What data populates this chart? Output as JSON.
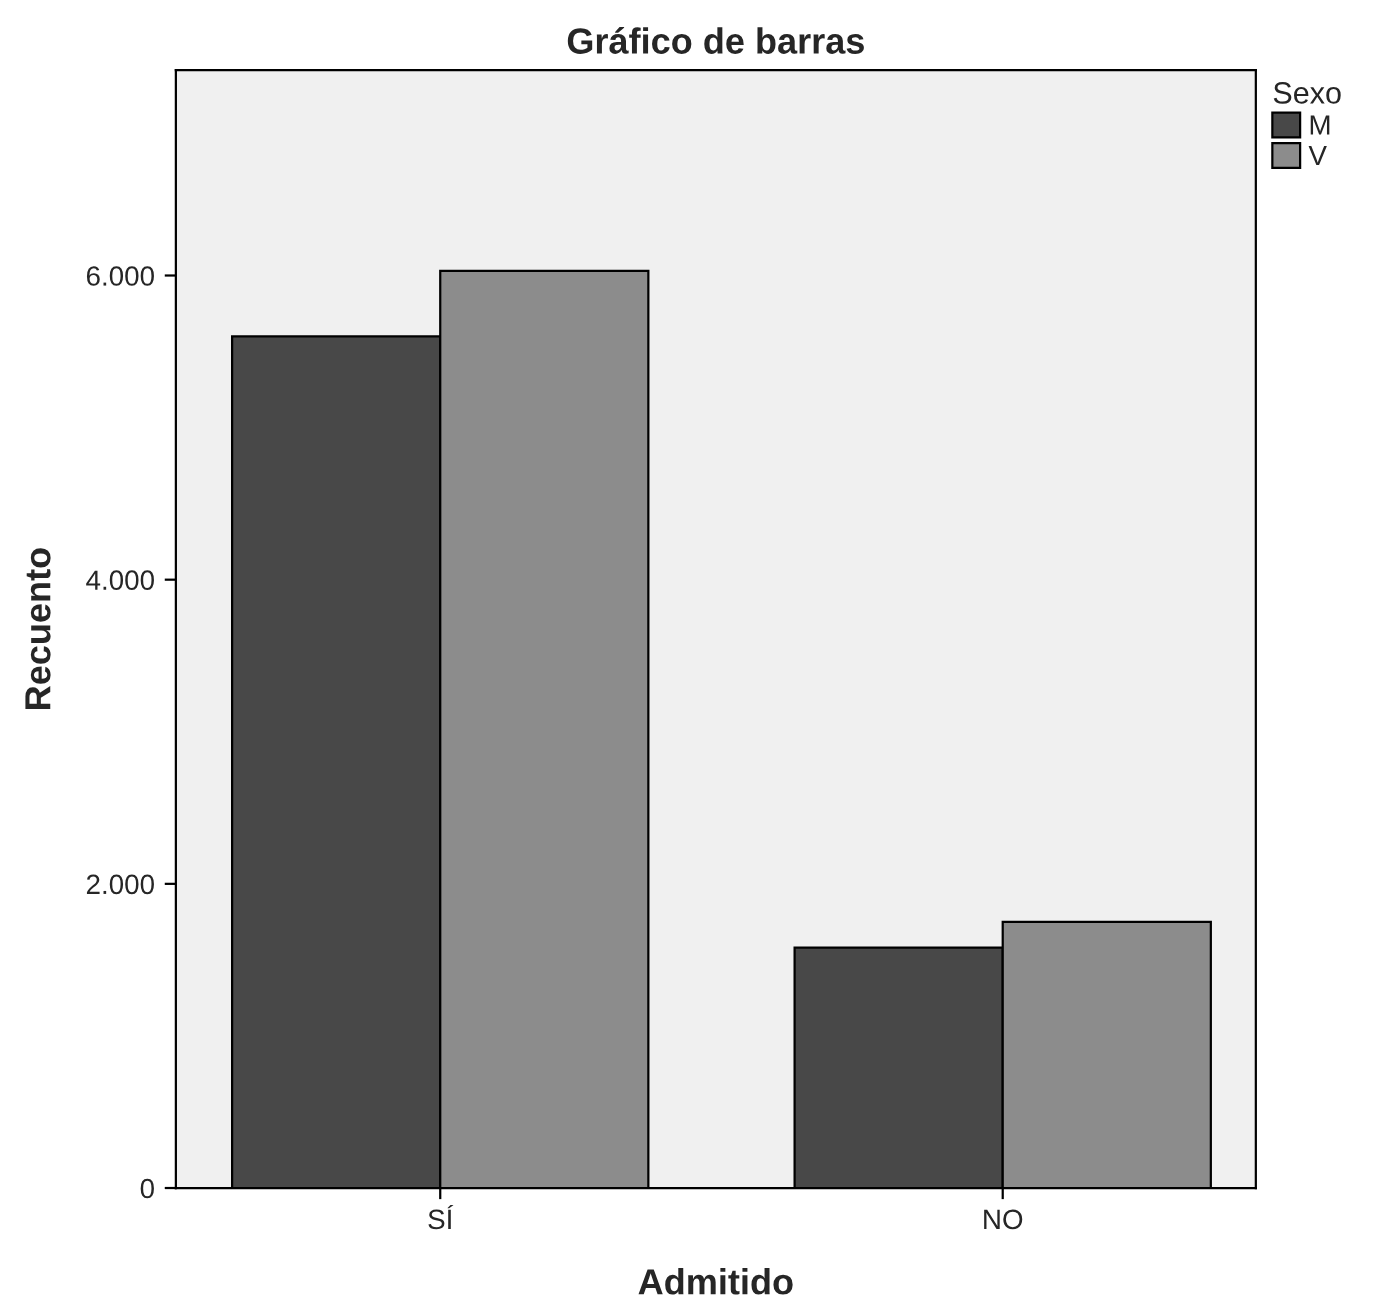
{
  "chart_data": {
    "type": "bar",
    "title": "Gráfico de barras",
    "xlabel": "Admitido",
    "ylabel": "Recuento",
    "legend_title": "Sexo",
    "categories": [
      "SÍ",
      "NO"
    ],
    "series": [
      {
        "name": "M",
        "color": "#484848",
        "values": [
          5600,
          1580
        ]
      },
      {
        "name": "V",
        "color": "#8c8c8c",
        "values": [
          6030,
          1750
        ]
      }
    ],
    "ylim": [
      0,
      7350
    ],
    "yticks": [
      {
        "value": 0,
        "label": "0"
      },
      {
        "value": 2000,
        "label": "2.000"
      },
      {
        "value": 4000,
        "label": "4.000"
      },
      {
        "value": 6000,
        "label": "6.000"
      }
    ],
    "grid": false,
    "legend": "top right"
  }
}
